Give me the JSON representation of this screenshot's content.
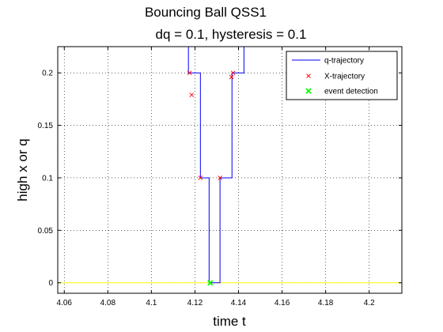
{
  "chart_data": {
    "type": "line",
    "title": "Bouncing Ball QSS1",
    "subtitle": "dq = 0.1, hysteresis = 0.1",
    "xlabel": "time t",
    "ylabel": "high x or q",
    "xlim": [
      4.057,
      4.215
    ],
    "ylim": [
      -0.01,
      0.225
    ],
    "xticks": [
      4.06,
      4.08,
      4.1,
      4.12,
      4.14,
      4.16,
      4.18,
      4.2
    ],
    "xtick_labels": [
      "4.06",
      "4.08",
      "4.1",
      "4.12",
      "4.14",
      "4.16",
      "4.18",
      "4.2"
    ],
    "yticks": [
      0,
      0.05,
      0.1,
      0.15,
      0.2
    ],
    "ytick_labels": [
      "0",
      "0.05",
      "0.1",
      "0.15",
      "0.2"
    ],
    "grid": true,
    "legend_position": "top-right",
    "colors": {
      "q_trajectory": "#0000ff",
      "x_trajectory": "#ff0000",
      "event_detection": "#00ff00",
      "zero_line": "#ffff00"
    },
    "series": [
      {
        "name": "q-trajectory",
        "style": "line",
        "color": "#0000ff",
        "x": [
          4.117,
          4.117,
          4.1175,
          4.1175,
          4.1225,
          4.1225,
          4.1265,
          4.1265,
          4.1315,
          4.1315,
          4.137,
          4.137,
          4.1425,
          4.1425
        ],
        "y": [
          0.225,
          0.2,
          0.2,
          0.2,
          0.2,
          0.1,
          0.1,
          0.0,
          0.0,
          0.1,
          0.1,
          0.2,
          0.2,
          0.225
        ]
      },
      {
        "name": "X-trajectory",
        "style": "marker-x",
        "color": "#ff0000",
        "x": [
          4.1175,
          4.1185,
          4.1225,
          4.1315,
          4.1368,
          4.1375
        ],
        "y": [
          0.2,
          0.179,
          0.1,
          0.1,
          0.196,
          0.2
        ]
      },
      {
        "name": "event detection",
        "style": "marker-x-bold",
        "color": "#00ff00",
        "x": [
          4.127
        ],
        "y": [
          0.0
        ]
      }
    ],
    "zero_line": {
      "y": 0,
      "color": "#ffff00"
    }
  }
}
